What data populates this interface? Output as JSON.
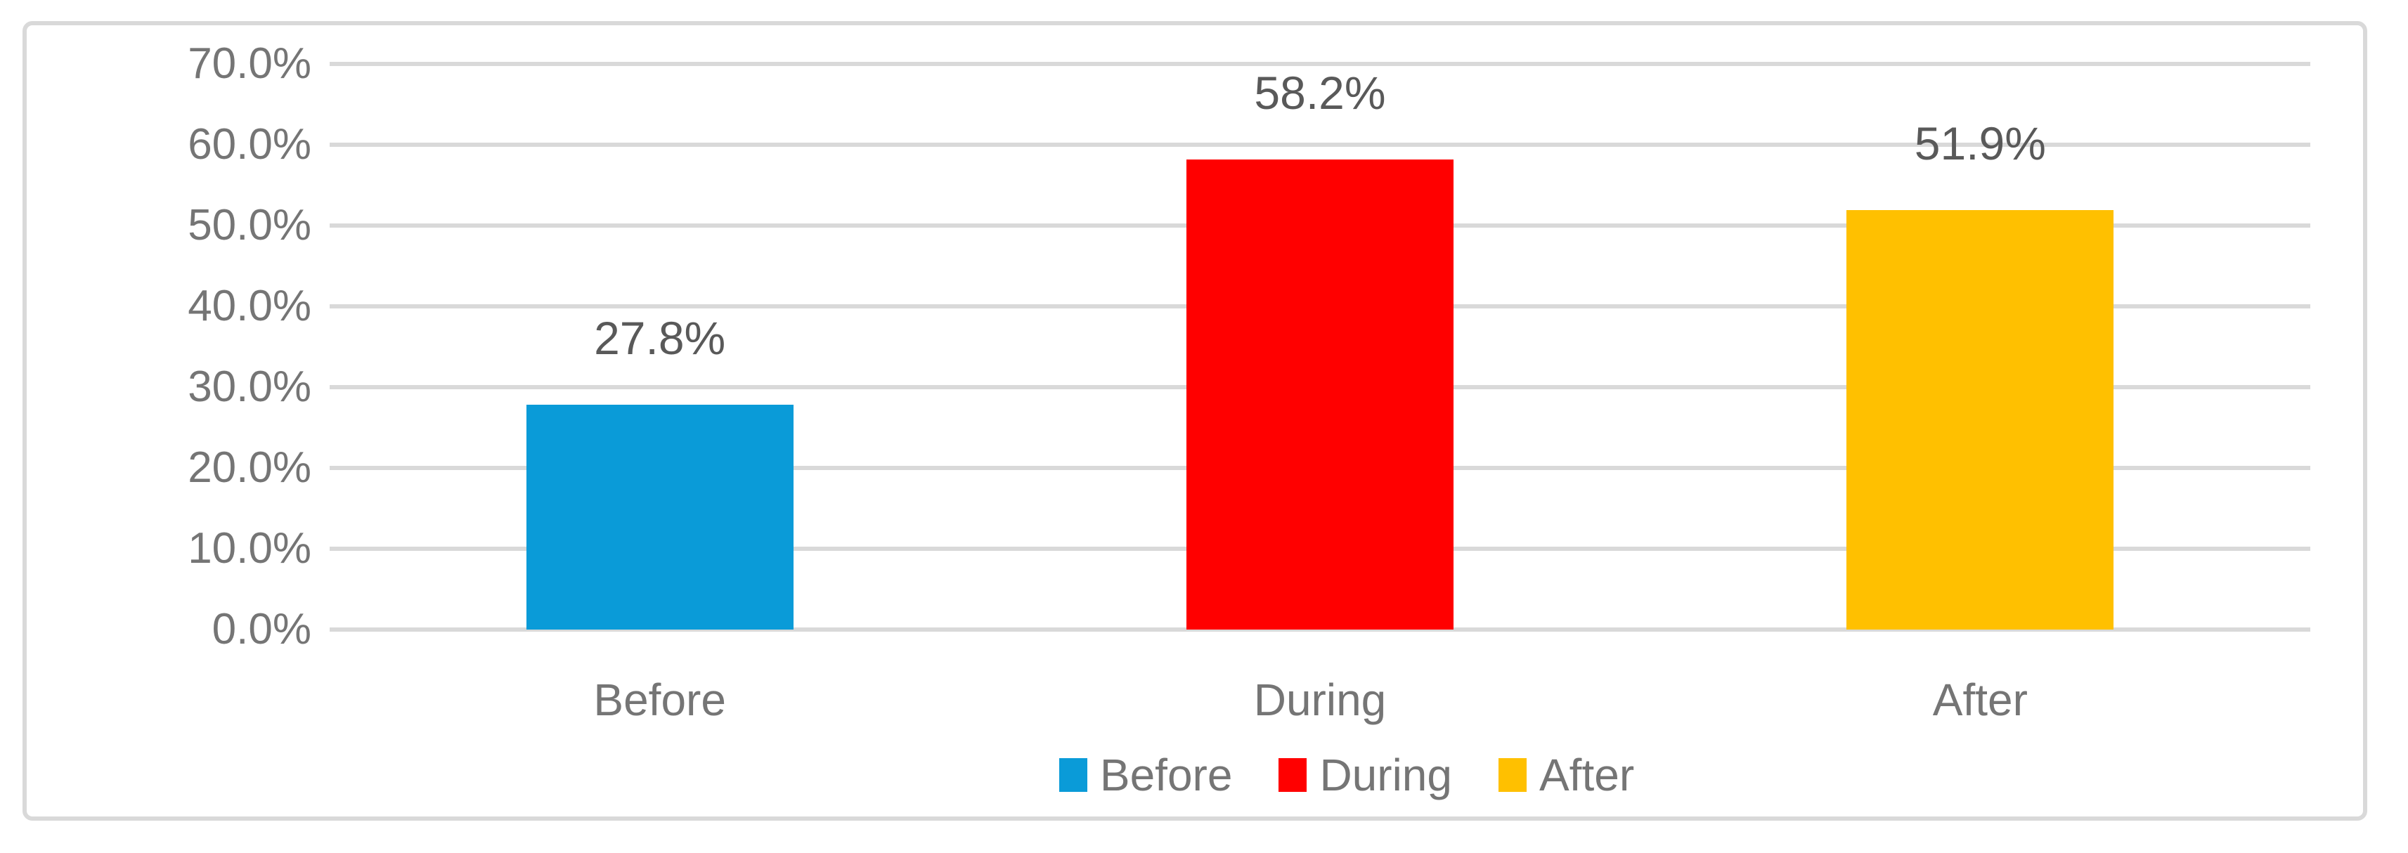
{
  "chart_data": {
    "type": "bar",
    "title": "",
    "xlabel": "",
    "ylabel": "",
    "categories": [
      "Before",
      "During",
      "After"
    ],
    "values": [
      27.8,
      58.2,
      51.9
    ],
    "data_labels": [
      "27.8%",
      "58.2%",
      "51.9%"
    ],
    "bar_colors": [
      "#0A9BD8",
      "#FF0000",
      "#FFC000"
    ],
    "ylim": [
      0,
      70
    ],
    "ytick_step": 10,
    "yticks": [
      {
        "value": 0,
        "label": "0.0%"
      },
      {
        "value": 10,
        "label": "10.0%"
      },
      {
        "value": 20,
        "label": "20.0%"
      },
      {
        "value": 30,
        "label": "30.0%"
      },
      {
        "value": 40,
        "label": "40.0%"
      },
      {
        "value": 50,
        "label": "50.0%"
      },
      {
        "value": 60,
        "label": "60.0%"
      },
      {
        "value": 70,
        "label": "70.0%"
      }
    ],
    "grid": true,
    "legend": {
      "position": "bottom",
      "entries": [
        {
          "label": "Before",
          "color": "#0A9BD8"
        },
        {
          "label": "During",
          "color": "#FF0000"
        },
        {
          "label": "After",
          "color": "#FFC000"
        }
      ]
    }
  },
  "colors": {
    "frame_border": "#D9D9D9",
    "gridline": "#D9D9D9",
    "tick_text": "#757575",
    "category_text": "#757575",
    "legend_text": "#757575",
    "data_label_text": "#595959",
    "background": "#FFFFFF"
  }
}
